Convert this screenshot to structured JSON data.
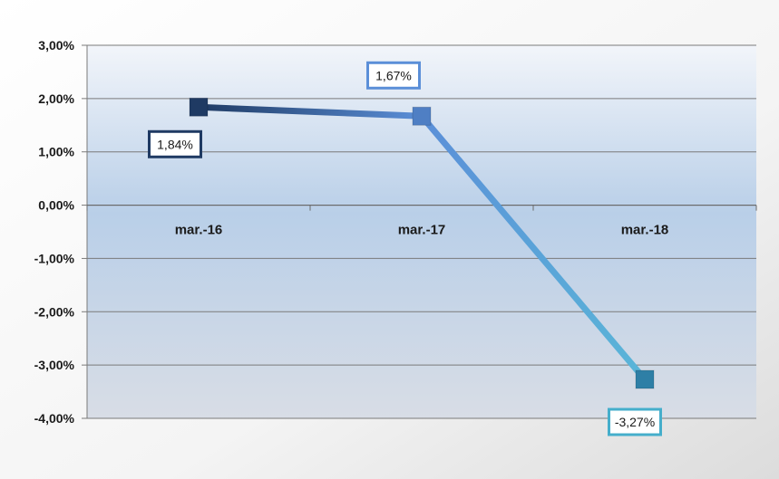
{
  "chart_data": {
    "type": "line",
    "categories": [
      "mar.-16",
      "mar.-17",
      "mar.-18"
    ],
    "series": [
      {
        "values": [
          1.84,
          1.67,
          -3.27
        ],
        "data_labels": [
          "1,84%",
          "1,67%",
          "-3,27%"
        ]
      }
    ],
    "yticks": [
      3,
      2,
      1,
      0,
      -1,
      -2,
      -3,
      -4
    ],
    "ytick_labels": [
      "3,00%",
      "2,00%",
      "1,00%",
      "0,00%",
      "-1,00%",
      "-2,00%",
      "-3,00%",
      "-4,00%"
    ],
    "ylim": [
      -4,
      3
    ],
    "grid": true,
    "legend": "none",
    "title": "",
    "xlabel": "",
    "ylabel": "",
    "colors": {
      "point_1": "#1f3a63",
      "point_2": "#4f7fc4",
      "point_3": "#2e7fa6",
      "line_start": "#1f3a63",
      "line_mid": "#5b8fd8",
      "line_end": "#5ab6d8",
      "label_border_1": "#1f3a63",
      "label_border_2": "#5b8fd8",
      "label_border_3": "#45aecb"
    }
  }
}
